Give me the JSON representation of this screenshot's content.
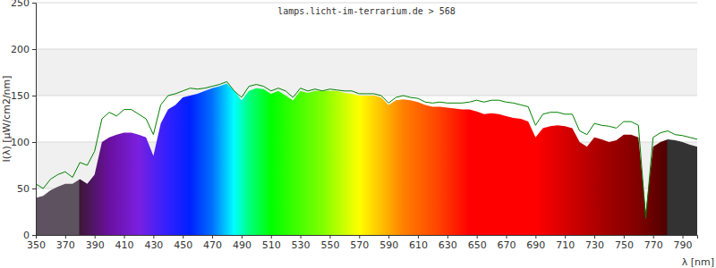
{
  "chart_data": {
    "type": "area",
    "title": "lamps.licht-im-terrarium.de > 568",
    "x_label": "λ [nm]",
    "y_label": "I(λ) [µW/cm2/nm]",
    "x": [
      350,
      355,
      360,
      365,
      370,
      375,
      380,
      385,
      390,
      395,
      400,
      405,
      410,
      415,
      420,
      425,
      430,
      435,
      440,
      445,
      450,
      455,
      460,
      465,
      470,
      475,
      480,
      485,
      490,
      495,
      500,
      505,
      510,
      515,
      520,
      525,
      530,
      535,
      540,
      545,
      550,
      555,
      560,
      565,
      570,
      575,
      580,
      585,
      590,
      595,
      600,
      605,
      610,
      615,
      620,
      625,
      630,
      635,
      640,
      645,
      650,
      655,
      660,
      665,
      670,
      675,
      680,
      685,
      690,
      695,
      700,
      705,
      710,
      715,
      720,
      725,
      730,
      735,
      740,
      745,
      750,
      755,
      760,
      765,
      770,
      775,
      780,
      785,
      790,
      795,
      800
    ],
    "series": [
      {
        "type": "area",
        "values": [
          40,
          42,
          48,
          52,
          55,
          55,
          60,
          55,
          65,
          100,
          105,
          108,
          110,
          110,
          108,
          105,
          85,
          120,
          135,
          140,
          148,
          150,
          152,
          155,
          158,
          160,
          163,
          155,
          145,
          155,
          158,
          157,
          152,
          155,
          150,
          145,
          155,
          153,
          155,
          155,
          155,
          155,
          153,
          152,
          150,
          150,
          150,
          148,
          140,
          145,
          146,
          145,
          143,
          140,
          138,
          138,
          137,
          136,
          135,
          135,
          133,
          130,
          131,
          130,
          128,
          126,
          125,
          122,
          105,
          115,
          117,
          118,
          117,
          115,
          100,
          95,
          105,
          103,
          100,
          102,
          108,
          108,
          105,
          25,
          95,
          100,
          103,
          102,
          100,
          97,
          95
        ]
      },
      {
        "type": "line",
        "color": "#008000",
        "values": [
          55,
          50,
          60,
          65,
          68,
          62,
          78,
          75,
          90,
          125,
          132,
          128,
          135,
          135,
          130,
          125,
          108,
          140,
          150,
          152,
          155,
          158,
          157,
          158,
          160,
          162,
          165,
          155,
          148,
          160,
          162,
          160,
          155,
          158,
          155,
          148,
          158,
          155,
          157,
          155,
          157,
          156,
          155,
          155,
          152,
          152,
          152,
          150,
          142,
          148,
          150,
          148,
          147,
          143,
          142,
          143,
          142,
          142,
          142,
          143,
          145,
          143,
          145,
          145,
          143,
          142,
          140,
          138,
          118,
          130,
          132,
          132,
          130,
          130,
          112,
          108,
          120,
          118,
          117,
          115,
          122,
          122,
          118,
          18,
          105,
          110,
          112,
          108,
          107,
          105,
          103
        ]
      }
    ],
    "xlim": [
      350,
      800
    ],
    "ylim": [
      0,
      250
    ],
    "xticks": [
      350,
      370,
      390,
      410,
      430,
      450,
      470,
      490,
      510,
      530,
      550,
      570,
      590,
      610,
      630,
      650,
      670,
      690,
      710,
      730,
      750,
      770,
      790
    ],
    "yticks": [
      0,
      50,
      100,
      150,
      200,
      250
    ],
    "grid": true
  }
}
